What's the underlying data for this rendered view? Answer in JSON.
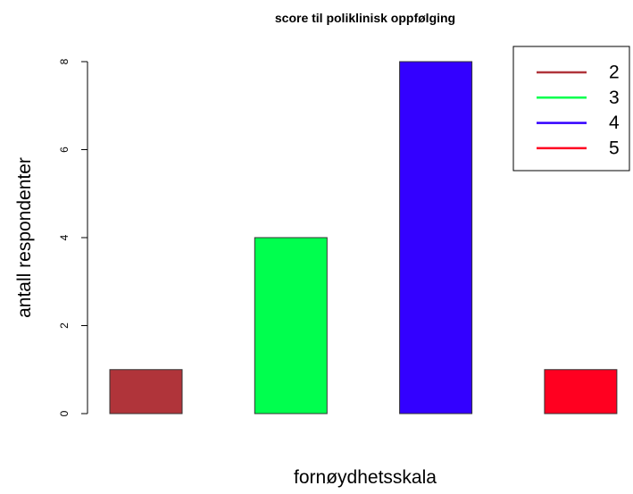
{
  "chart_data": {
    "type": "bar",
    "title": "score til poliklinisk oppfølging",
    "xlabel": "fornøydhetsskala",
    "ylabel": "antall respondenter",
    "categories": [
      "2",
      "3",
      "4",
      "5"
    ],
    "values": [
      1,
      4,
      8,
      1
    ],
    "colors": [
      "#b0343a",
      "#00ff4e",
      "#3300ff",
      "#ff0020"
    ],
    "ylim": [
      0,
      8
    ],
    "yticks": [
      0,
      2,
      4,
      6,
      8
    ],
    "grid": false,
    "legend": {
      "placement": "top-right",
      "entries": [
        "2",
        "3",
        "4",
        "5"
      ]
    }
  }
}
